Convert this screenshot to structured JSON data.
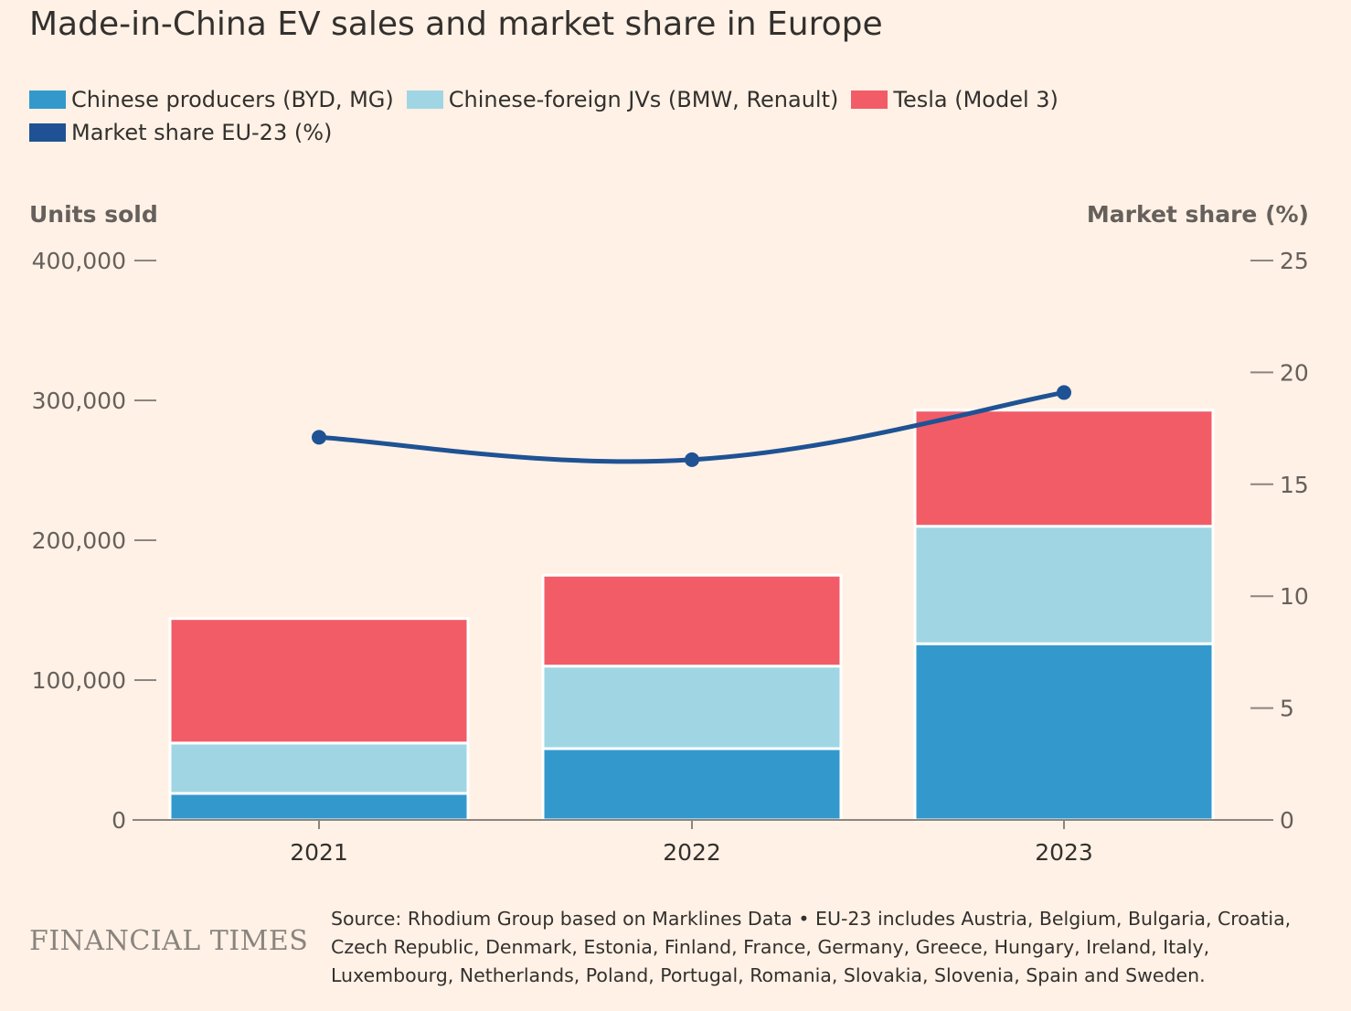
{
  "chart_data": {
    "type": "bar",
    "title": "Made-in-China EV sales and market share in Europe",
    "categories": [
      "2021",
      "2022",
      "2023"
    ],
    "series": [
      {
        "name": "Chinese producers (BYD, MG)",
        "values": [
          19000,
          51000,
          126000
        ],
        "color": "#3399CC"
      },
      {
        "name": "Chinese-foreign JVs (BMW, Renault)",
        "values": [
          36000,
          59000,
          84000
        ],
        "color": "#A0D6E4"
      },
      {
        "name": "Tesla (Model 3)",
        "values": [
          89000,
          65000,
          83000
        ],
        "color": "#F25C67"
      }
    ],
    "line_series": {
      "name": "Market share EU-23 (%)",
      "values": [
        17.1,
        16.1,
        19.1
      ],
      "color": "#1F5294"
    },
    "ylabel": "Units sold",
    "y2label": "Market share (%)",
    "ylim": [
      0,
      400000
    ],
    "y2lim": [
      0,
      25
    ],
    "yticks": [
      "0",
      "100,000",
      "200,000",
      "300,000",
      "400,000"
    ],
    "y2ticks": [
      "0",
      "5",
      "10",
      "15",
      "20",
      "25"
    ],
    "stacked": true
  },
  "legend": [
    {
      "label": "Chinese producers (BYD, MG)",
      "color": "#3399CC"
    },
    {
      "label": "Chinese-foreign JVs (BMW, Renault)",
      "color": "#A0D6E4"
    },
    {
      "label": "Tesla (Model 3)",
      "color": "#F25C67"
    },
    {
      "label": "Market share EU-23 (%)",
      "color": "#1F5294"
    }
  ],
  "footer": {
    "logo": "FINANCIAL TIMES",
    "source": "Source: Rhodium Group based on Marklines Data • EU-23 includes Austria, Belgium, Bulgaria, Croatia, Czech Republic, Denmark, Estonia, Finland, France, Germany, Greece, Hungary, Ireland, Italy, Luxembourg, Netherlands, Poland, Portugal, Romania, Slovakia, Slovenia, Spain and Sweden."
  }
}
